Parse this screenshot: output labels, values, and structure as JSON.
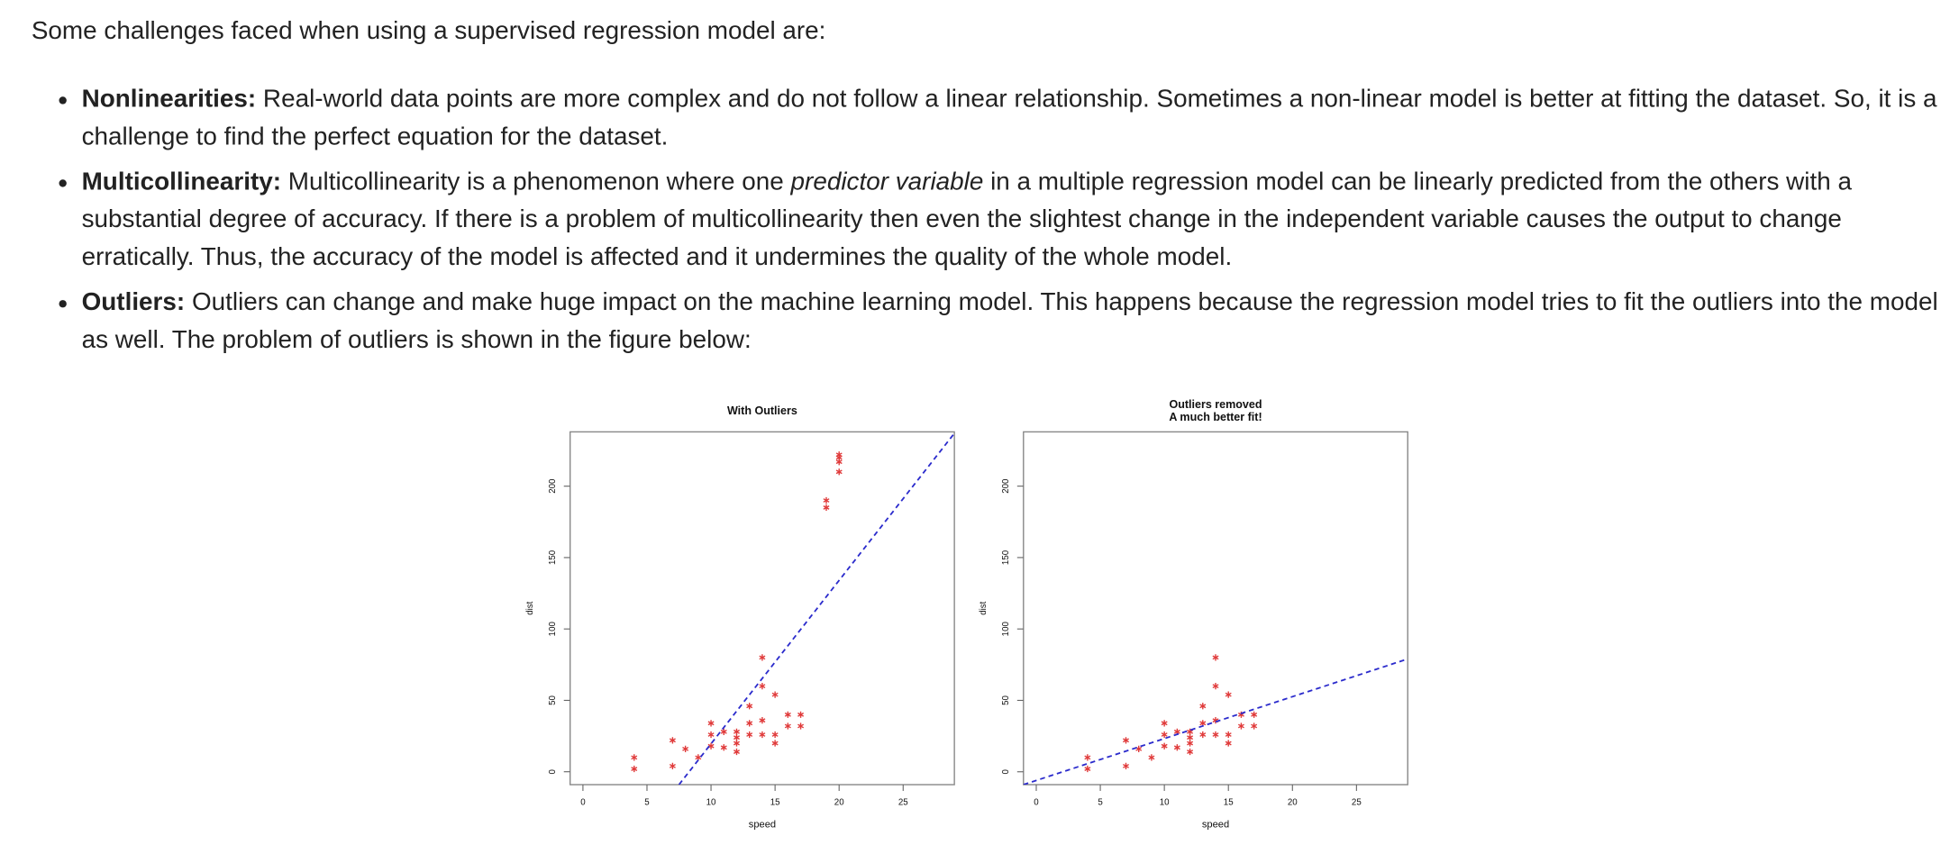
{
  "intro": "Some challenges faced when using a supervised regression model are:",
  "items": [
    {
      "term": "Nonlinearities:",
      "text": "Real-world data points are more complex and do not follow a linear relationship. Sometimes a non-linear model is better at fitting the dataset. So, it is a challenge to find the perfect equation for the dataset."
    },
    {
      "term": "Multicollinearity:",
      "text": [
        "Multicollinearity is a phenomenon where one ",
        "predictor variable",
        " in a multiple regression model can be linearly predicted from the others with a substantial degree of accuracy. If there is a problem of multicollinearity then even the slightest change in the independent variable causes the output to change erratically. Thus, the accuracy of the model is affected and it undermines the quality of the whole model."
      ]
    },
    {
      "term": "Outliers:",
      "text": "Outliers can change and make huge impact on the machine learning model. This happens because the regression model tries to fit the outliers into the model as well. The problem of outliers is shown in the figure below:"
    }
  ],
  "chart_data": [
    {
      "type": "scatter",
      "title": "With Outliers",
      "x_label": "speed",
      "y_label": "dist",
      "xlim": [
        -1,
        29
      ],
      "ylim": [
        -9,
        238
      ],
      "xticks": [
        0,
        5,
        10,
        15,
        20,
        25
      ],
      "yticks": [
        0,
        50,
        100,
        150,
        200
      ],
      "series": [
        {
          "color": "#e03a3a",
          "x": [
            4,
            4,
            7,
            7,
            8,
            9,
            10,
            10,
            10,
            11,
            11,
            12,
            12,
            12,
            12,
            13,
            13,
            13,
            14,
            14,
            14,
            14,
            15,
            15,
            15,
            16,
            16,
            17,
            17,
            19,
            19,
            20,
            20,
            20,
            20
          ],
          "values": [
            2,
            10,
            4,
            22,
            16,
            10,
            18,
            26,
            34,
            17,
            28,
            14,
            20,
            24,
            28,
            26,
            34,
            46,
            26,
            36,
            60,
            80,
            20,
            26,
            54,
            32,
            40,
            32,
            40,
            185,
            190,
            210,
            217,
            220,
            222
          ]
        },
        {
          "color": "#2b2bcc",
          "style": "dashed",
          "x": [
            7.5,
            29
          ],
          "values": [
            -9,
            237
          ]
        }
      ]
    },
    {
      "type": "scatter",
      "title": [
        "Outliers removed",
        "A much better fit!"
      ],
      "x_label": "speed",
      "y_label": "dist",
      "xlim": [
        -1,
        29
      ],
      "ylim": [
        -9,
        238
      ],
      "xticks": [
        0,
        5,
        10,
        15,
        20,
        25
      ],
      "yticks": [
        0,
        50,
        100,
        150,
        200
      ],
      "series": [
        {
          "color": "#e03a3a",
          "x": [
            4,
            4,
            7,
            7,
            8,
            9,
            10,
            10,
            10,
            11,
            11,
            12,
            12,
            12,
            12,
            13,
            13,
            13,
            14,
            14,
            14,
            14,
            15,
            15,
            15,
            16,
            16,
            17,
            17
          ],
          "values": [
            2,
            10,
            4,
            22,
            16,
            10,
            18,
            26,
            34,
            17,
            28,
            14,
            20,
            24,
            28,
            26,
            34,
            46,
            26,
            36,
            60,
            80,
            20,
            26,
            54,
            32,
            40,
            32,
            40
          ]
        },
        {
          "color": "#2b2bcc",
          "style": "dashed",
          "x": [
            -1,
            29
          ],
          "values": [
            -9,
            79
          ]
        }
      ]
    }
  ]
}
